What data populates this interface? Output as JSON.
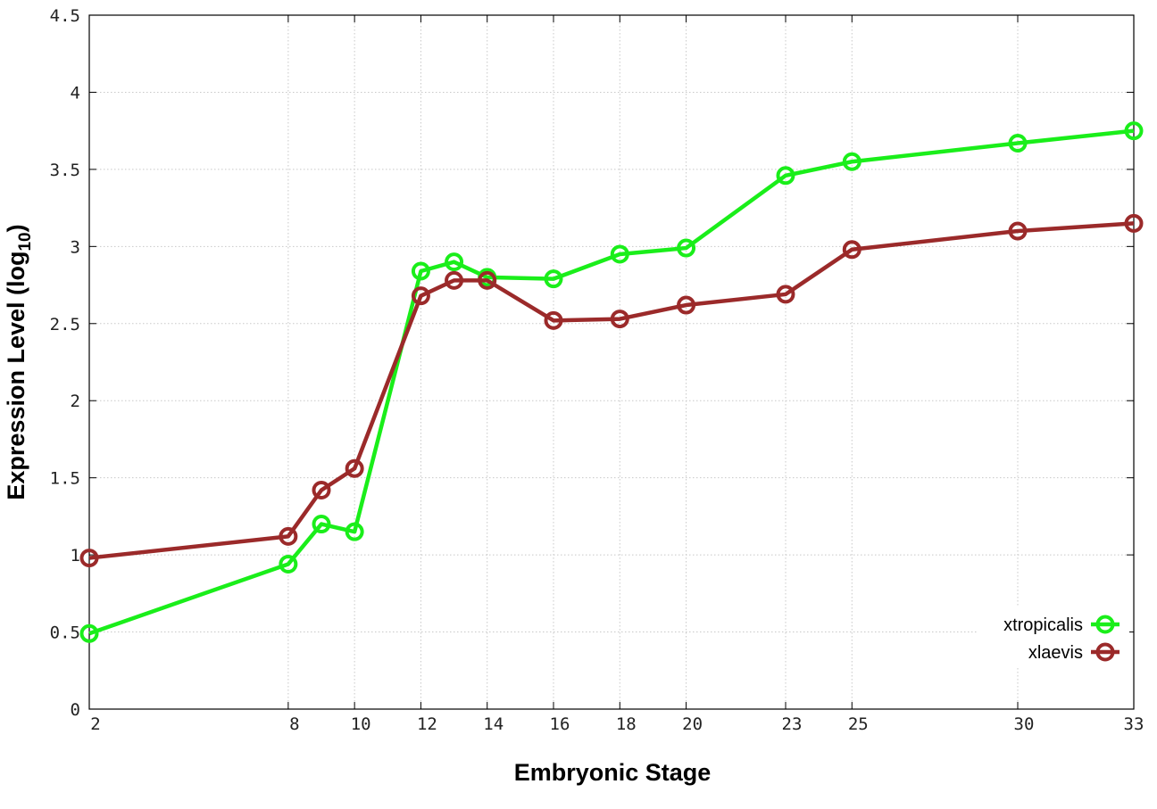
{
  "chart_data": {
    "type": "line",
    "xlabel": "Embryonic Stage",
    "ylabel": "Expression Level (log",
    "ylabel_subscript": "10",
    "ylabel_close": ")",
    "x_ticks": [
      "2",
      "8",
      "10",
      "12",
      "14",
      "16",
      "18",
      "20",
      "23",
      "25",
      "30",
      "33"
    ],
    "y_ticks": [
      "0",
      "0.5",
      "1",
      "1.5",
      "2",
      "2.5",
      "3",
      "3.5",
      "4",
      "4.5"
    ],
    "ylim": [
      0,
      4.5
    ],
    "grid": true,
    "legend_position": "bottom-right",
    "x_scale": "categorical stage positions",
    "x_positions": {
      "2": 0,
      "8": 6,
      "9": 7,
      "10": 8,
      "12": 10,
      "13": 11,
      "14": 12,
      "16": 14,
      "18": 16,
      "20": 18,
      "23": 21,
      "25": 23,
      "30": 28,
      "33": 31.5
    },
    "series": [
      {
        "name": "xtropicalis",
        "color": "#1aee1a",
        "x": [
          "2",
          "8",
          "9",
          "10",
          "12",
          "13",
          "14",
          "16",
          "18",
          "20",
          "23",
          "25",
          "30",
          "33"
        ],
        "values": [
          0.49,
          0.94,
          1.2,
          1.15,
          2.84,
          2.9,
          2.8,
          2.79,
          2.95,
          2.99,
          3.46,
          3.55,
          3.67,
          3.75
        ]
      },
      {
        "name": "xlaevis",
        "color": "#9b2a2a",
        "x": [
          "2",
          "8",
          "9",
          "10",
          "12",
          "13",
          "14",
          "16",
          "18",
          "20",
          "23",
          "25",
          "30",
          "33"
        ],
        "values": [
          0.98,
          1.12,
          1.42,
          1.56,
          2.68,
          2.78,
          2.78,
          2.52,
          2.53,
          2.62,
          2.69,
          2.98,
          3.1,
          3.15
        ]
      }
    ]
  }
}
